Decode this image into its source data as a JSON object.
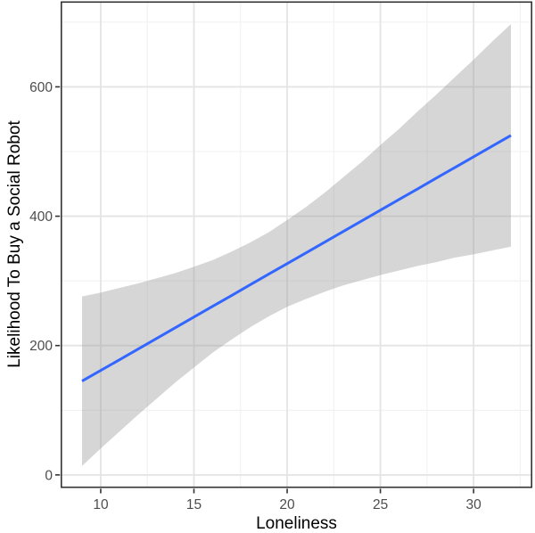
{
  "figure": {
    "background": "#FFFFFF"
  },
  "chart_data": {
    "type": "line",
    "title": "",
    "xlabel": "Loneliness",
    "ylabel": "Likelihood To Buy a Social Robot",
    "legend": "none",
    "grid": "major+minor",
    "xlim": [
      7.85,
      33.15
    ],
    "ylim": [
      -20.2,
      732.2
    ],
    "x_ticks": [
      10,
      15,
      20,
      25,
      30
    ],
    "y_ticks": [
      0,
      200,
      400,
      600
    ],
    "x_minor_ticks": [
      12.5,
      17.5,
      22.5,
      27.5,
      32.5
    ],
    "y_minor_ticks": [
      100,
      300,
      500,
      700
    ],
    "x": [
      9,
      10,
      11,
      12,
      13,
      14,
      15,
      16,
      17,
      18,
      19,
      20,
      21,
      22,
      23,
      24,
      25,
      26,
      27,
      28,
      29,
      30,
      31,
      32
    ],
    "series": [
      {
        "name": "fitted-regression-line",
        "color": "#3366FF",
        "width": 3,
        "y": [
          145.0,
          161.5,
          178.0,
          194.5,
          211.1,
          227.6,
          244.1,
          260.6,
          277.1,
          293.7,
          310.2,
          326.7,
          343.2,
          359.7,
          376.3,
          392.8,
          409.3,
          425.8,
          442.3,
          458.9,
          475.4,
          491.9,
          508.4,
          524.9
        ]
      },
      {
        "name": "confidence-ribbon",
        "fill": "#999999",
        "opacity": 0.4,
        "lower": [
          14,
          41,
          67,
          93,
          118,
          143,
          166,
          189,
          209,
          228,
          245,
          260,
          272,
          283,
          293,
          301,
          309,
          316,
          323,
          329,
          336,
          341,
          347,
          353
        ],
        "upper": [
          276,
          282,
          289,
          296,
          304,
          312,
          322,
          332,
          345,
          359,
          375,
          394,
          414,
          436,
          460,
          484,
          510,
          535,
          562,
          588,
          615,
          642,
          670,
          697
        ]
      }
    ],
    "style": {
      "panel_background": "#FFFFFF",
      "panel_border": "#333333",
      "grid_major": "#E4E4E4",
      "grid_minor": "#F1F1F1",
      "tick_color": "#333333",
      "tick_label_color": "#4D4D4D",
      "axis_title_color": "#000000"
    }
  }
}
